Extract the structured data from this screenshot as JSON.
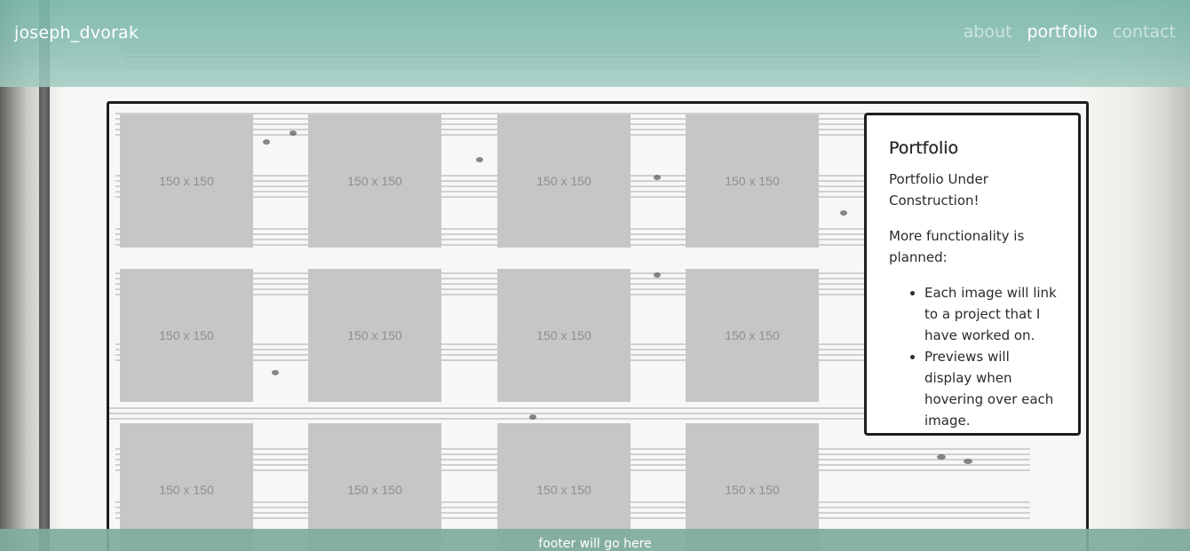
{
  "navbar": {
    "brand": "joseph_dvorak",
    "links": [
      {
        "label": "about",
        "active": false
      },
      {
        "label": "portfolio",
        "active": true
      },
      {
        "label": "contact",
        "active": false
      }
    ]
  },
  "gallery": {
    "tiles": [
      "150 x 150",
      "150 x 150",
      "150 x 150",
      "150 x 150",
      "150 x 150",
      "150 x 150",
      "150 x 150",
      "150 x 150",
      "150 x 150",
      "150 x 150",
      "150 x 150",
      "150 x 150"
    ]
  },
  "card": {
    "title": "Portfolio",
    "intro": "Portfolio Under Construction!",
    "planned": "More functionality is planned:",
    "items": [
      "Each image will link to a project that I have worked on.",
      "Previews will display when hovering over each image."
    ]
  },
  "footer": {
    "text": "footer will go here"
  },
  "colors": {
    "navbar": "#78b6a8",
    "footer": "#80aca0",
    "tile": "#c6c6c6",
    "frame_border": "#1d1d1d"
  }
}
